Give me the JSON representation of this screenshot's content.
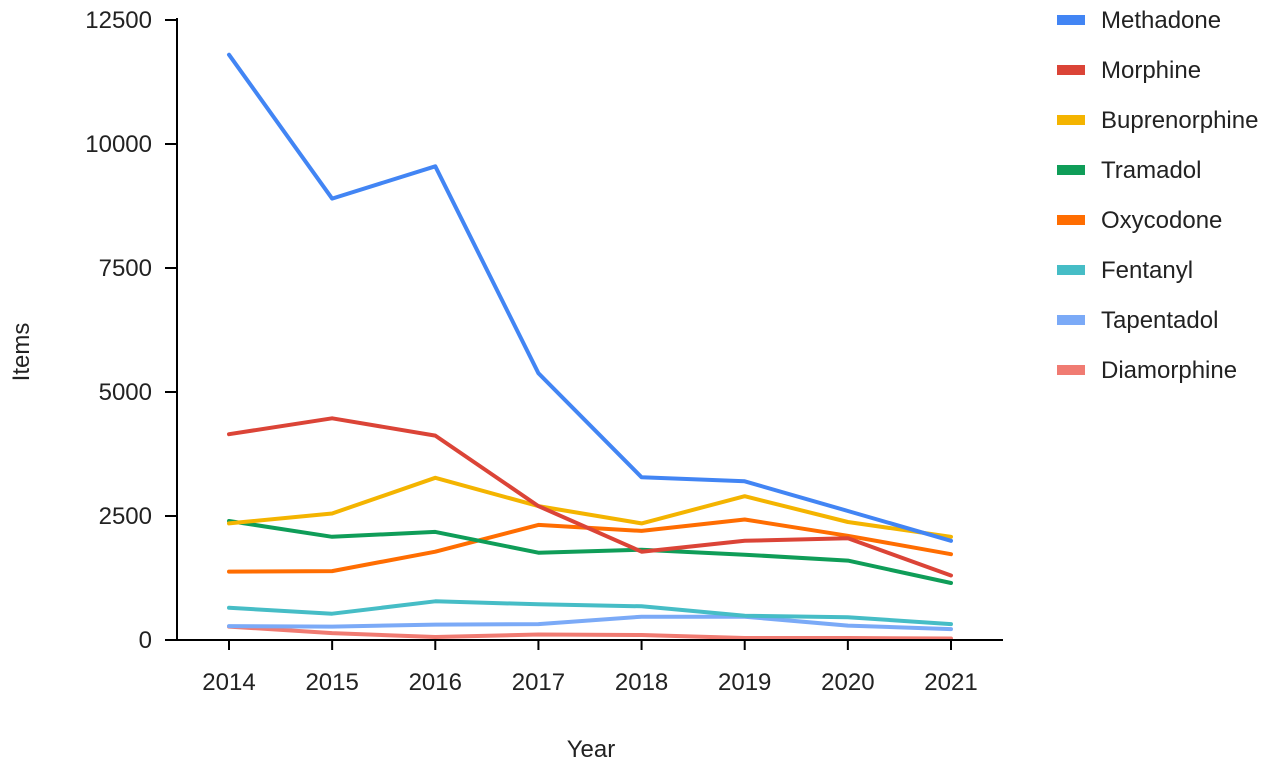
{
  "chart_data": {
    "type": "line",
    "title": "",
    "xlabel": "Year",
    "ylabel": "Items",
    "categories": [
      "2014",
      "2015",
      "2016",
      "2017",
      "2018",
      "2019",
      "2020",
      "2021"
    ],
    "ylim": [
      0,
      12500
    ],
    "yticks": [
      0,
      2500,
      5000,
      7500,
      10000,
      12500
    ],
    "grid": false,
    "legend_position": "right",
    "series": [
      {
        "name": "Methadone",
        "color": "#4285f4",
        "values": [
          11800,
          8900,
          9550,
          5380,
          3280,
          3200,
          2600,
          2000
        ]
      },
      {
        "name": "Morphine",
        "color": "#db4437",
        "values": [
          4150,
          4470,
          4120,
          2700,
          1780,
          2000,
          2050,
          1300
        ]
      },
      {
        "name": "Buprenorphine",
        "color": "#f4b400",
        "values": [
          2350,
          2550,
          3270,
          2700,
          2350,
          2900,
          2380,
          2080
        ]
      },
      {
        "name": "Tramadol",
        "color": "#0f9d58",
        "values": [
          2400,
          2080,
          2180,
          1760,
          1820,
          1720,
          1600,
          1150
        ]
      },
      {
        "name": "Oxycodone",
        "color": "#ff6d01",
        "values": [
          1380,
          1390,
          1780,
          2320,
          2200,
          2430,
          2100,
          1730
        ]
      },
      {
        "name": "Fentanyl",
        "color": "#46bdc6",
        "values": [
          650,
          530,
          780,
          720,
          680,
          490,
          460,
          320
        ]
      },
      {
        "name": "Tapentadol",
        "color": "#7baaf7",
        "values": [
          280,
          270,
          310,
          320,
          470,
          470,
          290,
          220
        ]
      },
      {
        "name": "Diamorphine",
        "color": "#f07b72",
        "values": [
          270,
          140,
          60,
          110,
          100,
          40,
          40,
          30
        ]
      }
    ]
  }
}
